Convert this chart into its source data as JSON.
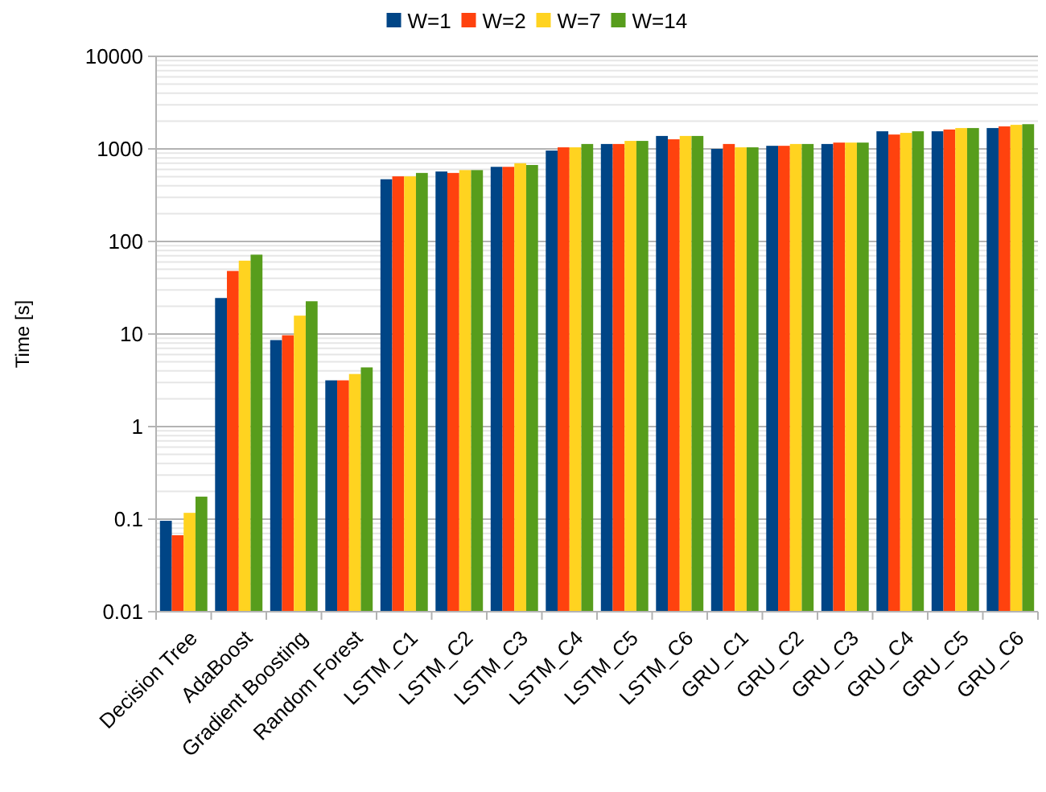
{
  "chart_data": {
    "type": "bar",
    "ylabel": "Time [s]",
    "log": true,
    "grid": true,
    "legend": "top",
    "categories": [
      "Decision Tree",
      "AdaBoost",
      "Gradient Boosting",
      "Random Forest",
      "LSTM_C1",
      "LSTM_C2",
      "LSTM_C3",
      "LSTM_C4",
      "LSTM_C5",
      "LSTM_C6",
      "GRU_C1",
      "GRU_C2",
      "GRU_C3",
      "GRU_C4",
      "GRU_C5",
      "GRU_C6"
    ],
    "ylim": [
      0.01,
      10000
    ],
    "yticks": [
      0.01,
      0.1,
      1,
      10,
      100,
      1000,
      10000
    ],
    "series": [
      {
        "name": "W=1",
        "color": "#004586",
        "values": [
          0.096,
          24.5,
          8.6,
          3.16,
          470,
          570,
          640,
          960,
          1130,
          1380,
          1000,
          1080,
          1130,
          1550,
          1550,
          1680
        ]
      },
      {
        "name": "W=2",
        "color": "#ff420e",
        "values": [
          0.067,
          48,
          9.7,
          3.16,
          505,
          550,
          640,
          1040,
          1130,
          1270,
          1130,
          1080,
          1170,
          1430,
          1620,
          1750
        ]
      },
      {
        "name": "W=7",
        "color": "#ffd320",
        "values": [
          0.117,
          62,
          15.8,
          3.7,
          505,
          590,
          700,
          1040,
          1220,
          1380,
          1040,
          1130,
          1170,
          1490,
          1680,
          1820
        ]
      },
      {
        "name": "W=14",
        "color": "#579d1c",
        "values": [
          0.175,
          72,
          22.6,
          4.36,
          550,
          590,
          670,
          1130,
          1220,
          1380,
          1040,
          1130,
          1170,
          1550,
          1680,
          1850
        ]
      }
    ]
  }
}
